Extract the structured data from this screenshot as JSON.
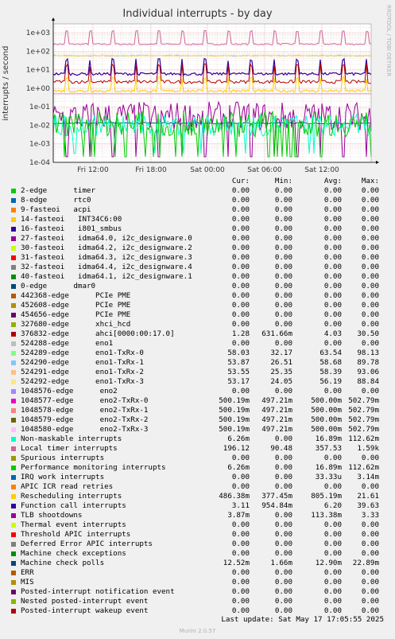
{
  "header": {
    "side_credit": "RRDTOOL / TOBI OETIKER"
  },
  "chart_data": {
    "type": "line",
    "title": "Individual interrupts - by day",
    "ylabel": "interrupts / second",
    "xlabel": "",
    "yscale": "log",
    "ylim": [
      0.0001,
      3000
    ],
    "y_ticks": [
      "1e-04",
      "1e-03",
      "1e-02",
      "1e-01",
      "1e+00",
      "1e+01",
      "1e+02",
      "1e+03"
    ],
    "x_ticks": [
      "Fri 12:00",
      "Fri 18:00",
      "Sat 00:00",
      "Sat 06:00",
      "Sat 12:00"
    ],
    "grid": true,
    "columns": [
      "Cur:",
      "Min:",
      "Avg:",
      "Max:"
    ],
    "series": [
      {
        "name": "2-edge      timer",
        "color": "#00cc00",
        "cur": "0.00",
        "min": "0.00",
        "avg": "0.00",
        "max": "0.00"
      },
      {
        "name": "8-edge      rtc0",
        "color": "#0066b3",
        "cur": "0.00",
        "min": "0.00",
        "avg": "0.00",
        "max": "0.00"
      },
      {
        "name": "9-fasteoi   acpi",
        "color": "#ff8000",
        "cur": "0.00",
        "min": "0.00",
        "avg": "0.00",
        "max": "0.00"
      },
      {
        "name": "14-fasteoi   INT34C6:00",
        "color": "#ffcc00",
        "cur": "0.00",
        "min": "0.00",
        "avg": "0.00",
        "max": "0.00"
      },
      {
        "name": "16-fasteoi   i801_smbus",
        "color": "#330099",
        "cur": "0.00",
        "min": "0.00",
        "avg": "0.00",
        "max": "0.00"
      },
      {
        "name": "27-fasteoi   idma64.0, i2c_designware.0",
        "color": "#990099",
        "cur": "0.00",
        "min": "0.00",
        "avg": "0.00",
        "max": "0.00"
      },
      {
        "name": "30-fasteoi   idma64.2, i2c_designware.2",
        "color": "#ccff00",
        "cur": "0.00",
        "min": "0.00",
        "avg": "0.00",
        "max": "0.00"
      },
      {
        "name": "31-fasteoi   idma64.3, i2c_designware.3",
        "color": "#ff0000",
        "cur": "0.00",
        "min": "0.00",
        "avg": "0.00",
        "max": "0.00"
      },
      {
        "name": "32-fasteoi   idma64.4, i2c_designware.4",
        "color": "#808080",
        "cur": "0.00",
        "min": "0.00",
        "avg": "0.00",
        "max": "0.00"
      },
      {
        "name": "40-fasteoi   idma64.1, i2c_designware.1",
        "color": "#008f00",
        "cur": "0.00",
        "min": "0.00",
        "avg": "0.00",
        "max": "0.00"
      },
      {
        "name": "0-edge      dmar0",
        "color": "#00487d",
        "cur": "0.00",
        "min": "0.00",
        "avg": "0.00",
        "max": "0.00"
      },
      {
        "name": "442368-edge      PCIe PME",
        "color": "#b35a00",
        "cur": "0.00",
        "min": "0.00",
        "avg": "0.00",
        "max": "0.00"
      },
      {
        "name": "452608-edge      PCIe PME",
        "color": "#b38f00",
        "cur": "0.00",
        "min": "0.00",
        "avg": "0.00",
        "max": "0.00"
      },
      {
        "name": "454656-edge      PCIe PME",
        "color": "#6b006b",
        "cur": "0.00",
        "min": "0.00",
        "avg": "0.00",
        "max": "0.00"
      },
      {
        "name": "327680-edge      xhci_hcd",
        "color": "#8fb300",
        "cur": "0.00",
        "min": "0.00",
        "avg": "0.00",
        "max": "0.00"
      },
      {
        "name": "376832-edge      ahci[0000:00:17.0]",
        "color": "#b30000",
        "cur": "1.28",
        "min": "631.66m",
        "avg": "4.03",
        "max": "30.50"
      },
      {
        "name": "524288-edge      eno1",
        "color": "#bebebe",
        "cur": "0.00",
        "min": "0.00",
        "avg": "0.00",
        "max": "0.00"
      },
      {
        "name": "524289-edge      eno1-TxRx-0",
        "color": "#80ff80",
        "cur": "58.03",
        "min": "32.17",
        "avg": "63.54",
        "max": "98.13"
      },
      {
        "name": "524290-edge      eno1-TxRx-1",
        "color": "#80c9ff",
        "cur": "53.87",
        "min": "26.51",
        "avg": "58.68",
        "max": "89.78"
      },
      {
        "name": "524291-edge      eno1-TxRx-2",
        "color": "#ffc080",
        "cur": "53.55",
        "min": "25.35",
        "avg": "58.39",
        "max": "93.06"
      },
      {
        "name": "524292-edge      eno1-TxRx-3",
        "color": "#ffe680",
        "cur": "53.17",
        "min": "24.05",
        "avg": "56.19",
        "max": "88.84"
      },
      {
        "name": "1048576-edge      eno2",
        "color": "#aa80ff",
        "cur": "0.00",
        "min": "0.00",
        "avg": "0.00",
        "max": "0.00"
      },
      {
        "name": "1048577-edge      eno2-TxRx-0",
        "color": "#ee00cc",
        "cur": "500.19m",
        "min": "497.21m",
        "avg": "500.00m",
        "max": "502.79m"
      },
      {
        "name": "1048578-edge      eno2-TxRx-1",
        "color": "#ff8080",
        "cur": "500.19m",
        "min": "497.21m",
        "avg": "500.00m",
        "max": "502.79m"
      },
      {
        "name": "1048579-edge      eno2-TxRx-2",
        "color": "#666600",
        "cur": "500.19m",
        "min": "497.21m",
        "avg": "500.00m",
        "max": "502.79m"
      },
      {
        "name": "1048580-edge      eno2-TxRx-3",
        "color": "#ffbfff",
        "cur": "500.19m",
        "min": "497.21m",
        "avg": "500.00m",
        "max": "502.79m"
      },
      {
        "name": "Non-maskable interrupts",
        "color": "#00ffcc",
        "cur": "6.26m",
        "min": "0.00",
        "avg": "16.89m",
        "max": "112.62m"
      },
      {
        "name": "Local timer interrupts",
        "color": "#cc6699",
        "cur": "196.12",
        "min": "90.48",
        "avg": "357.53",
        "max": "1.59k"
      },
      {
        "name": "Spurious interrupts",
        "color": "#999900",
        "cur": "0.00",
        "min": "0.00",
        "avg": "0.00",
        "max": "0.00"
      },
      {
        "name": "Performance monitoring interrupts",
        "color": "#00cc00",
        "cur": "6.26m",
        "min": "0.00",
        "avg": "16.89m",
        "max": "112.62m"
      },
      {
        "name": "IRQ work interrupts",
        "color": "#0066b3",
        "cur": "0.00",
        "min": "0.00",
        "avg": "33.33u",
        "max": "3.14m"
      },
      {
        "name": "APIC ICR read retries",
        "color": "#ff8000",
        "cur": "0.00",
        "min": "0.00",
        "avg": "0.00",
        "max": "0.00"
      },
      {
        "name": "Rescheduling interrupts",
        "color": "#ffcc00",
        "cur": "486.38m",
        "min": "377.45m",
        "avg": "805.19m",
        "max": "21.61"
      },
      {
        "name": "Function call interrupts",
        "color": "#330099",
        "cur": "3.11",
        "min": "954.84m",
        "avg": "6.20",
        "max": "39.63"
      },
      {
        "name": "TLB shootdowns",
        "color": "#990099",
        "cur": "3.87m",
        "min": "0.00",
        "avg": "113.38m",
        "max": "3.33"
      },
      {
        "name": "Thermal event interrupts",
        "color": "#ccff00",
        "cur": "0.00",
        "min": "0.00",
        "avg": "0.00",
        "max": "0.00"
      },
      {
        "name": "Threshold APIC interrupts",
        "color": "#ff0000",
        "cur": "0.00",
        "min": "0.00",
        "avg": "0.00",
        "max": "0.00"
      },
      {
        "name": "Deferred Error APIC interrupts",
        "color": "#808080",
        "cur": "0.00",
        "min": "0.00",
        "avg": "0.00",
        "max": "0.00"
      },
      {
        "name": "Machine check exceptions",
        "color": "#008f00",
        "cur": "0.00",
        "min": "0.00",
        "avg": "0.00",
        "max": "0.00"
      },
      {
        "name": "Machine check polls",
        "color": "#00487d",
        "cur": "12.52m",
        "min": "1.66m",
        "avg": "12.90m",
        "max": "22.89m"
      },
      {
        "name": "ERR",
        "color": "#b35a00",
        "cur": "0.00",
        "min": "0.00",
        "avg": "0.00",
        "max": "0.00"
      },
      {
        "name": "MIS",
        "color": "#b38f00",
        "cur": "0.00",
        "min": "0.00",
        "avg": "0.00",
        "max": "0.00"
      },
      {
        "name": "Posted-interrupt notification event",
        "color": "#6b006b",
        "cur": "0.00",
        "min": "0.00",
        "avg": "0.00",
        "max": "0.00"
      },
      {
        "name": "Nested posted-interrupt event",
        "color": "#8fb300",
        "cur": "0.00",
        "min": "0.00",
        "avg": "0.00",
        "max": "0.00"
      },
      {
        "name": "Posted-interrupt wakeup event",
        "color": "#b30000",
        "cur": "0.00",
        "min": "0.00",
        "avg": "0.00",
        "max": "0.00"
      }
    ]
  },
  "footer": {
    "last_update": "Last update: Sat May 17 17:05:55 2025",
    "version": "Munin 2.0.57"
  }
}
